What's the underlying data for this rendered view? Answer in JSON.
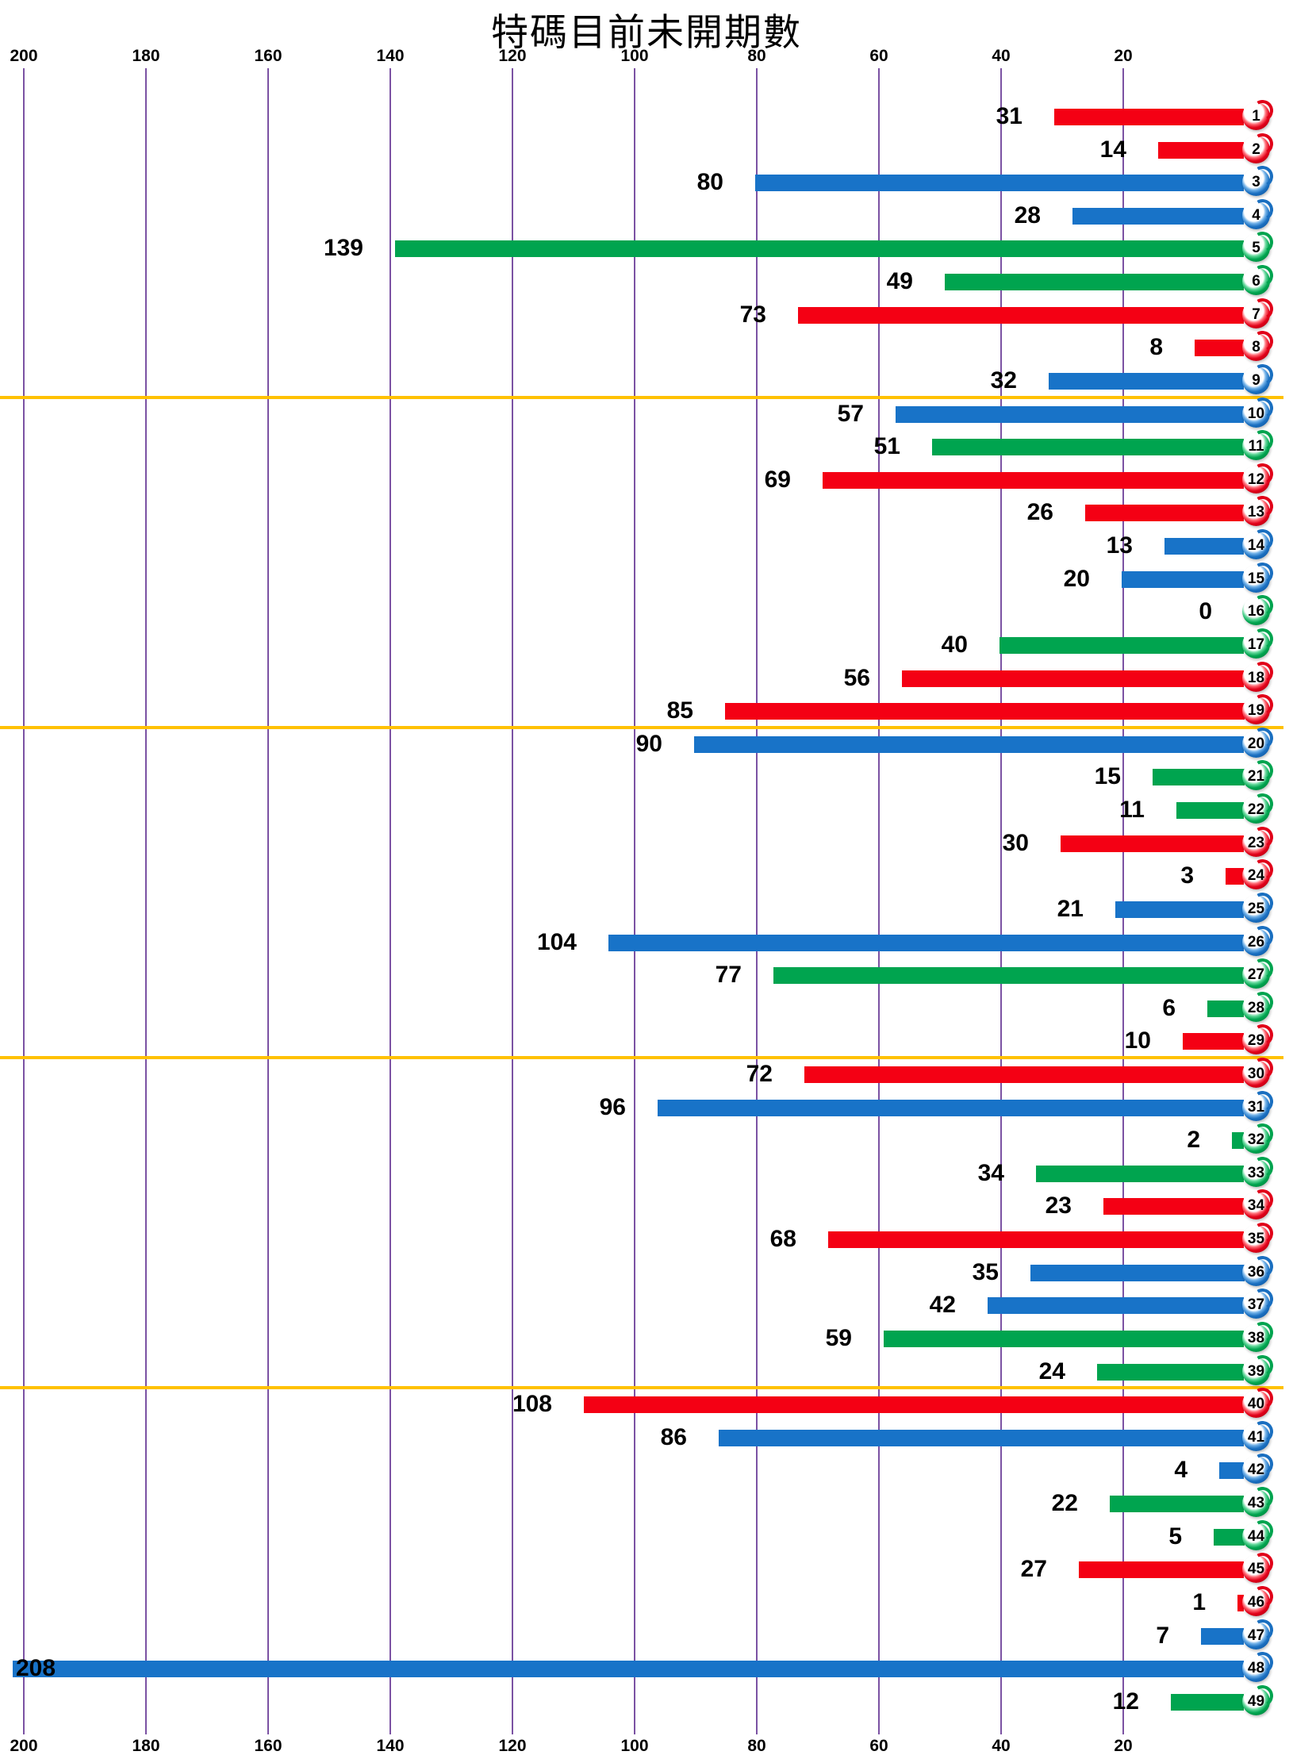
{
  "title": "特碼目前未開期數",
  "colors": {
    "red": "#F40014",
    "blue": "#1873C8",
    "green": "#00A44F",
    "separator_line": "#FFC103",
    "gridline": "#7B52A3",
    "text": "#000000",
    "background": "#FFFFFF"
  },
  "chart_data": {
    "type": "bar",
    "title": "特碼目前未開期數",
    "orientation": "horizontal, bars grow right-to-left from right edge",
    "xlabel": "",
    "ylabel": "",
    "axis_ticks": [
      200,
      180,
      160,
      140,
      120,
      100,
      80,
      60,
      40,
      20
    ],
    "axis_positions": [
      "top",
      "bottom"
    ],
    "axis_range": [
      0,
      200
    ],
    "grid": true,
    "legend": false,
    "separators_after_rows": [
      9,
      19,
      29,
      39
    ],
    "categories": [
      1,
      2,
      3,
      4,
      5,
      6,
      7,
      8,
      9,
      10,
      11,
      12,
      13,
      14,
      15,
      16,
      17,
      18,
      19,
      20,
      21,
      22,
      23,
      24,
      25,
      26,
      27,
      28,
      29,
      30,
      31,
      32,
      33,
      34,
      35,
      36,
      37,
      38,
      39,
      40,
      41,
      42,
      43,
      44,
      45,
      46,
      47,
      48,
      49
    ],
    "values": [
      31,
      14,
      80,
      28,
      139,
      49,
      73,
      8,
      32,
      57,
      51,
      69,
      26,
      13,
      20,
      0,
      40,
      56,
      85,
      90,
      15,
      11,
      30,
      3,
      21,
      104,
      77,
      6,
      10,
      72,
      96,
      2,
      34,
      23,
      68,
      35,
      42,
      59,
      24,
      108,
      86,
      4,
      22,
      5,
      27,
      1,
      7,
      208,
      12
    ],
    "bar_colors": [
      "red",
      "red",
      "blue",
      "blue",
      "green",
      "green",
      "red",
      "red",
      "blue",
      "blue",
      "green",
      "red",
      "red",
      "blue",
      "blue",
      "green",
      "green",
      "red",
      "red",
      "blue",
      "green",
      "green",
      "red",
      "red",
      "blue",
      "blue",
      "green",
      "green",
      "red",
      "red",
      "blue",
      "green",
      "green",
      "red",
      "red",
      "blue",
      "blue",
      "green",
      "green",
      "red",
      "blue",
      "blue",
      "green",
      "green",
      "red",
      "red",
      "blue",
      "blue",
      "green"
    ],
    "rows": [
      {
        "number": 1,
        "value": 31,
        "color": "red"
      },
      {
        "number": 2,
        "value": 14,
        "color": "red"
      },
      {
        "number": 3,
        "value": 80,
        "color": "blue"
      },
      {
        "number": 4,
        "value": 28,
        "color": "blue"
      },
      {
        "number": 5,
        "value": 139,
        "color": "green"
      },
      {
        "number": 6,
        "value": 49,
        "color": "green"
      },
      {
        "number": 7,
        "value": 73,
        "color": "red"
      },
      {
        "number": 8,
        "value": 8,
        "color": "red"
      },
      {
        "number": 9,
        "value": 32,
        "color": "blue"
      },
      {
        "number": 10,
        "value": 57,
        "color": "blue"
      },
      {
        "number": 11,
        "value": 51,
        "color": "green"
      },
      {
        "number": 12,
        "value": 69,
        "color": "red"
      },
      {
        "number": 13,
        "value": 26,
        "color": "red"
      },
      {
        "number": 14,
        "value": 13,
        "color": "blue"
      },
      {
        "number": 15,
        "value": 20,
        "color": "blue"
      },
      {
        "number": 16,
        "value": 0,
        "color": "green"
      },
      {
        "number": 17,
        "value": 40,
        "color": "green"
      },
      {
        "number": 18,
        "value": 56,
        "color": "red"
      },
      {
        "number": 19,
        "value": 85,
        "color": "red"
      },
      {
        "number": 20,
        "value": 90,
        "color": "blue"
      },
      {
        "number": 21,
        "value": 15,
        "color": "green"
      },
      {
        "number": 22,
        "value": 11,
        "color": "green"
      },
      {
        "number": 23,
        "value": 30,
        "color": "red"
      },
      {
        "number": 24,
        "value": 3,
        "color": "red"
      },
      {
        "number": 25,
        "value": 21,
        "color": "blue"
      },
      {
        "number": 26,
        "value": 104,
        "color": "blue"
      },
      {
        "number": 27,
        "value": 77,
        "color": "green"
      },
      {
        "number": 28,
        "value": 6,
        "color": "green"
      },
      {
        "number": 29,
        "value": 10,
        "color": "red"
      },
      {
        "number": 30,
        "value": 72,
        "color": "red"
      },
      {
        "number": 31,
        "value": 96,
        "color": "blue"
      },
      {
        "number": 32,
        "value": 2,
        "color": "green"
      },
      {
        "number": 33,
        "value": 34,
        "color": "green"
      },
      {
        "number": 34,
        "value": 23,
        "color": "red"
      },
      {
        "number": 35,
        "value": 68,
        "color": "red"
      },
      {
        "number": 36,
        "value": 35,
        "color": "blue"
      },
      {
        "number": 37,
        "value": 42,
        "color": "blue"
      },
      {
        "number": 38,
        "value": 59,
        "color": "green"
      },
      {
        "number": 39,
        "value": 24,
        "color": "green"
      },
      {
        "number": 40,
        "value": 108,
        "color": "red"
      },
      {
        "number": 41,
        "value": 86,
        "color": "blue"
      },
      {
        "number": 42,
        "value": 4,
        "color": "blue"
      },
      {
        "number": 43,
        "value": 22,
        "color": "green"
      },
      {
        "number": 44,
        "value": 5,
        "color": "green"
      },
      {
        "number": 45,
        "value": 27,
        "color": "red"
      },
      {
        "number": 46,
        "value": 1,
        "color": "red"
      },
      {
        "number": 47,
        "value": 7,
        "color": "blue"
      },
      {
        "number": 48,
        "value": 208,
        "color": "blue"
      },
      {
        "number": 49,
        "value": 12,
        "color": "green"
      }
    ]
  }
}
